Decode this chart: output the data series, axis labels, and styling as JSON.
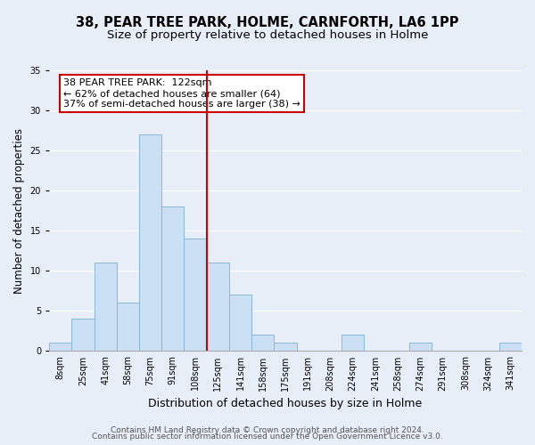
{
  "title": "38, PEAR TREE PARK, HOLME, CARNFORTH, LA6 1PP",
  "subtitle": "Size of property relative to detached houses in Holme",
  "xlabel": "Distribution of detached houses by size in Holme",
  "ylabel": "Number of detached properties",
  "bin_labels": [
    "8sqm",
    "25sqm",
    "41sqm",
    "58sqm",
    "75sqm",
    "91sqm",
    "108sqm",
    "125sqm",
    "141sqm",
    "158sqm",
    "175sqm",
    "191sqm",
    "208sqm",
    "224sqm",
    "241sqm",
    "258sqm",
    "274sqm",
    "291sqm",
    "308sqm",
    "324sqm",
    "341sqm"
  ],
  "bar_heights": [
    1,
    4,
    11,
    6,
    27,
    18,
    14,
    11,
    7,
    2,
    1,
    0,
    0,
    2,
    0,
    0,
    1,
    0,
    0,
    0,
    1
  ],
  "bar_color": "#cce0f5",
  "bar_edge_color": "#8ab8d8",
  "highlight_line_color": "#cc0000",
  "highlight_bin_index": 7,
  "ylim": [
    0,
    35
  ],
  "yticks": [
    0,
    5,
    10,
    15,
    20,
    25,
    30,
    35
  ],
  "annotation_title": "38 PEAR TREE PARK:  122sqm",
  "annotation_line1": "← 62% of detached houses are smaller (64)",
  "annotation_line2": "37% of semi-detached houses are larger (38) →",
  "annotation_box_color": "#ffffff",
  "annotation_box_edge": "#cc0000",
  "footer_line1": "Contains HM Land Registry data © Crown copyright and database right 2024.",
  "footer_line2": "Contains public sector information licensed under the Open Government Licence v3.0.",
  "background_color": "#e8eef8",
  "plot_background": "#e8eef8",
  "title_fontsize": 10.5,
  "subtitle_fontsize": 9.5,
  "xlabel_fontsize": 9,
  "ylabel_fontsize": 8.5,
  "tick_fontsize": 7,
  "annotation_fontsize": 8,
  "footer_fontsize": 6.5
}
